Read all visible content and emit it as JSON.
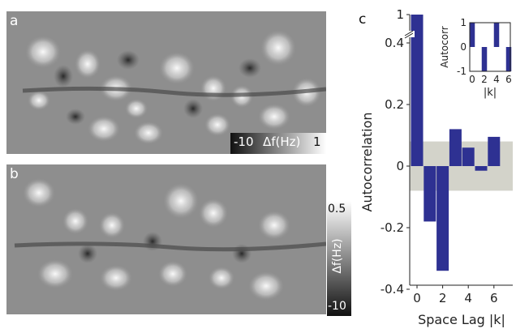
{
  "panels": {
    "a": {
      "letter": "a",
      "colorbar": {
        "min": "-10",
        "max": "1",
        "quantity": "Δf(Hz)"
      }
    },
    "b": {
      "letter": "b",
      "colorbar": {
        "min": "-10",
        "max": "0.5",
        "quantity": "Δf(Hz)"
      }
    },
    "c": {
      "letter": "c"
    }
  },
  "colors": {
    "bar": "#2e3192",
    "band": "#d3d3ca"
  },
  "chart_data": [
    {
      "type": "bar",
      "x": [
        0,
        1,
        2,
        3,
        4,
        5,
        6
      ],
      "values": [
        1.0,
        -0.18,
        -0.34,
        0.12,
        0.06,
        -0.015,
        0.095
      ],
      "xlabel": "Space Lag |k|",
      "ylabel": "Autocorrelation",
      "xticks": [
        0,
        2,
        4,
        6
      ],
      "yticks_lower": [
        -0.4,
        -0.2,
        0,
        0.2,
        0.4
      ],
      "ytick_break": 1,
      "axis_break": true,
      "significance_band": [
        -0.08,
        0.08
      ],
      "ylim": [
        -0.4,
        1
      ]
    },
    {
      "type": "bar",
      "inset": true,
      "x": [
        0,
        1,
        2,
        3,
        4,
        5,
        6
      ],
      "values": [
        1,
        0,
        -1,
        0,
        1,
        0,
        -1
      ],
      "xlabel": "|k|",
      "ylabel": "Autocorr",
      "xticks": [
        0,
        2,
        4,
        6
      ],
      "yticks": [
        -1,
        0,
        1
      ],
      "ylim": [
        -1,
        1
      ]
    }
  ]
}
